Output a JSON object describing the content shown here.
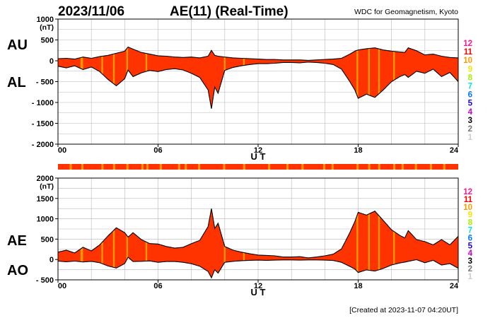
{
  "header": {
    "date": "2023/11/06",
    "title": "AE(11) (Real-Time)",
    "source": "WDC for Geomagnetism, Kyoto"
  },
  "footer": {
    "created": "[Created at 2023-11-07 04:20UT]"
  },
  "legend_numbers": [
    {
      "label": "12",
      "color": "#ff1493"
    },
    {
      "label": "11",
      "color": "#ff0000"
    },
    {
      "label": "10",
      "color": "#ff9900"
    },
    {
      "label": "9",
      "color": "#f5e400"
    },
    {
      "label": "8",
      "color": "#a8f000"
    },
    {
      "label": "7",
      "color": "#00e6e6"
    },
    {
      "label": "6",
      "color": "#0077ff"
    },
    {
      "label": "5",
      "color": "#2200cc"
    },
    {
      "label": "4",
      "color": "#cc00cc"
    },
    {
      "label": "3",
      "color": "#000000"
    },
    {
      "label": "2",
      "color": "#777777"
    },
    {
      "label": "1",
      "color": "#cccccc"
    }
  ],
  "colors": {
    "fill_main": "#ff3300",
    "fill_alt": "#ff9900",
    "strip": "#ff3300"
  },
  "chart_data": [
    {
      "type": "area",
      "panel": "AU/AL",
      "labels": {
        "upper": "AU",
        "lower": "AL"
      },
      "unit": "(nT)",
      "xlabel": "U T",
      "xlim": [
        0,
        24
      ],
      "xticks": [
        0,
        6,
        12,
        18,
        24
      ],
      "xtick_labels": [
        "00",
        "06",
        "12",
        "18",
        "24"
      ],
      "ylim": [
        -2000,
        1000
      ],
      "yticks": [
        1000,
        500,
        0,
        -500,
        -1000,
        -1500,
        -2000
      ],
      "ytick_labels": [
        "1000",
        "500",
        "0",
        "- 500",
        "- 1000",
        "- 1500",
        "- 2000"
      ],
      "series": [
        {
          "name": "AU",
          "x": [
            0,
            0.5,
            1,
            1.5,
            2,
            2.5,
            3,
            3.5,
            4,
            4.2,
            4.5,
            5,
            5.5,
            6,
            6.5,
            7,
            7.5,
            8,
            8.5,
            9,
            9.2,
            9.4,
            9.6,
            10,
            10.5,
            11,
            11.5,
            12,
            12.5,
            13,
            13.5,
            14,
            14.5,
            15,
            15.5,
            16,
            16.5,
            17,
            17.5,
            17.8,
            18,
            18.5,
            19,
            19.5,
            20,
            20.5,
            20.8,
            21,
            21.5,
            22,
            22.5,
            23,
            23.5,
            24
          ],
          "values": [
            50,
            60,
            40,
            90,
            60,
            100,
            130,
            180,
            230,
            330,
            280,
            200,
            160,
            120,
            110,
            90,
            80,
            90,
            70,
            110,
            250,
            130,
            110,
            90,
            70,
            60,
            50,
            40,
            30,
            30,
            20,
            20,
            20,
            10,
            20,
            30,
            40,
            60,
            160,
            230,
            260,
            290,
            310,
            260,
            230,
            210,
            200,
            310,
            240,
            140,
            160,
            110,
            80,
            70
          ]
        },
        {
          "name": "AL",
          "x": [
            0,
            0.5,
            1,
            1.5,
            2,
            2.5,
            3,
            3.5,
            4,
            4.2,
            4.5,
            5,
            5.5,
            6,
            6.5,
            7,
            7.5,
            8,
            8.5,
            9,
            9.2,
            9.4,
            9.6,
            10,
            10.5,
            11,
            11.5,
            12,
            12.5,
            13,
            13.5,
            14,
            14.5,
            15,
            15.5,
            16,
            16.5,
            17,
            17.5,
            17.8,
            18,
            18.5,
            19,
            19.5,
            20,
            20.5,
            20.8,
            21,
            21.5,
            22,
            22.5,
            23,
            23.5,
            24
          ],
          "values": [
            -130,
            -170,
            -120,
            -210,
            -150,
            -260,
            -450,
            -600,
            -430,
            -220,
            -380,
            -290,
            -230,
            -260,
            -210,
            -190,
            -220,
            -300,
            -400,
            -700,
            -1150,
            -630,
            -780,
            -230,
            -160,
            -120,
            -90,
            -70,
            -70,
            -60,
            -40,
            -40,
            -50,
            -30,
            -40,
            -60,
            -90,
            -200,
            -500,
            -700,
            -900,
            -800,
            -880,
            -700,
            -500,
            -380,
            -330,
            -400,
            -250,
            -300,
            -200,
            -380,
            -280,
            -500
          ]
        }
      ]
    },
    {
      "type": "area",
      "panel": "AE/AO",
      "labels": {
        "upper": "AE",
        "lower": "AO"
      },
      "unit": "(nT)",
      "xlabel": "U T",
      "xlim": [
        0,
        24
      ],
      "xticks": [
        0,
        6,
        12,
        18,
        24
      ],
      "xtick_labels": [
        "00",
        "06",
        "12",
        "18",
        "24"
      ],
      "ylim": [
        -500,
        2000
      ],
      "yticks": [
        2000,
        1500,
        1000,
        500,
        0,
        -500
      ],
      "ytick_labels": [
        "2000",
        "1500",
        "1000",
        "500",
        "0",
        "- 500"
      ],
      "series": [
        {
          "name": "AE",
          "x": [
            0,
            0.5,
            1,
            1.5,
            2,
            2.5,
            3,
            3.5,
            4,
            4.2,
            4.5,
            5,
            5.5,
            6,
            6.5,
            7,
            7.5,
            8,
            8.5,
            9,
            9.2,
            9.4,
            9.6,
            10,
            10.5,
            11,
            11.5,
            12,
            12.5,
            13,
            13.5,
            14,
            14.5,
            15,
            15.5,
            16,
            16.5,
            17,
            17.5,
            17.8,
            18,
            18.5,
            19,
            19.5,
            20,
            20.5,
            20.8,
            21,
            21.5,
            22,
            22.5,
            23,
            23.5,
            24
          ],
          "values": [
            180,
            230,
            160,
            300,
            210,
            360,
            580,
            780,
            660,
            550,
            660,
            490,
            390,
            380,
            320,
            280,
            300,
            390,
            470,
            810,
            1250,
            760,
            890,
            320,
            230,
            180,
            140,
            110,
            100,
            90,
            60,
            60,
            70,
            40,
            60,
            90,
            130,
            260,
            660,
            930,
            1160,
            1090,
            1190,
            960,
            730,
            590,
            530,
            710,
            490,
            440,
            360,
            490,
            360,
            570
          ]
        },
        {
          "name": "AO",
          "x": [
            0,
            0.5,
            1,
            1.5,
            2,
            2.5,
            3,
            3.5,
            4,
            4.2,
            4.5,
            5,
            5.5,
            6,
            6.5,
            7,
            7.5,
            8,
            8.5,
            9,
            9.2,
            9.4,
            9.6,
            10,
            10.5,
            11,
            11.5,
            12,
            12.5,
            13,
            13.5,
            14,
            14.5,
            15,
            15.5,
            16,
            16.5,
            17,
            17.5,
            17.8,
            18,
            18.5,
            19,
            19.5,
            20,
            20.5,
            20.8,
            21,
            21.5,
            22,
            22.5,
            23,
            23.5,
            24
          ],
          "values": [
            -40,
            -55,
            -40,
            -60,
            -45,
            -80,
            -160,
            -210,
            -100,
            55,
            -50,
            -45,
            -35,
            -70,
            -50,
            -50,
            -70,
            -105,
            -165,
            -295,
            -450,
            -250,
            -335,
            -70,
            -45,
            -30,
            -20,
            -15,
            -20,
            -15,
            -10,
            -10,
            -15,
            -10,
            -10,
            -15,
            -25,
            -70,
            -170,
            -235,
            -320,
            -255,
            -285,
            -220,
            -135,
            -85,
            -65,
            -45,
            -5,
            -80,
            -20,
            -135,
            -100,
            -215
          ]
        }
      ]
    }
  ]
}
